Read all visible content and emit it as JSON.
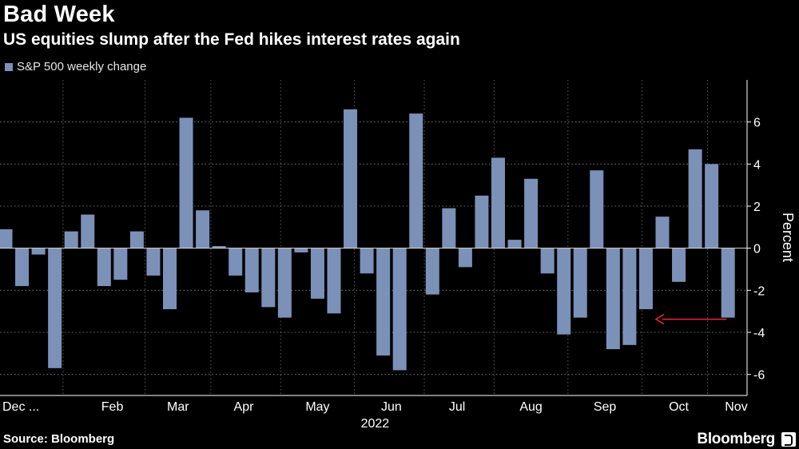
{
  "header": {
    "title": "Bad Week",
    "subtitle": "US equities slump after the Fed hikes interest rates again"
  },
  "footer": {
    "source": "Source: Bloomberg",
    "brand": "Bloomberg"
  },
  "colors": {
    "bar": "#7b91b8",
    "grid": "#ffffff",
    "arrow": "#e0243b",
    "background": "#000000"
  },
  "chart_data": {
    "type": "bar",
    "title": "Bad Week",
    "subtitle": "US equities slump after the Fed hikes interest rates again",
    "legend": [
      "S&P 500 weekly change"
    ],
    "legend_position": "top-left",
    "ylabel": "Percent",
    "xlabel": "2022",
    "ylim": [
      -7,
      8
    ],
    "yticks": [
      -6,
      -4,
      -2,
      0,
      2,
      4,
      6
    ],
    "ytick_labels": [
      "-6",
      "-4",
      "-2",
      "0",
      "2",
      "4",
      "6"
    ],
    "x_month_labels": [
      "Dec ...",
      "Feb",
      "Mar",
      "Apr",
      "May",
      "Jun",
      "Jul",
      "Aug",
      "Sep",
      "Oct",
      "Nov"
    ],
    "x_month_label_weeks": [
      0.5,
      6.5,
      10.5,
      14.5,
      19,
      23.5,
      27.5,
      32,
      36.5,
      41,
      44.5
    ],
    "x_year_label": "2022",
    "x_year_label_week": 22.5,
    "grid": true,
    "series": [
      {
        "name": "S&P 500 weekly change",
        "values": [
          0.9,
          -1.8,
          -0.3,
          -5.7,
          0.8,
          1.6,
          -1.8,
          -1.5,
          0.8,
          -1.3,
          -2.9,
          6.2,
          1.8,
          0.1,
          -1.3,
          -2.1,
          -2.8,
          -3.3,
          -0.2,
          -2.4,
          -3.1,
          6.6,
          -1.2,
          -5.1,
          -5.8,
          6.4,
          -2.2,
          1.9,
          -0.9,
          2.5,
          4.3,
          0.4,
          3.3,
          -1.2,
          -4.1,
          -3.3,
          3.7,
          -4.8,
          -4.6,
          -2.9,
          1.5,
          -1.6,
          4.7,
          4.0,
          -3.3
        ]
      }
    ],
    "annotation": {
      "type": "arrow",
      "from_week": 44,
      "to_week": 39,
      "value": -3.3,
      "color": "#e0243b"
    }
  }
}
